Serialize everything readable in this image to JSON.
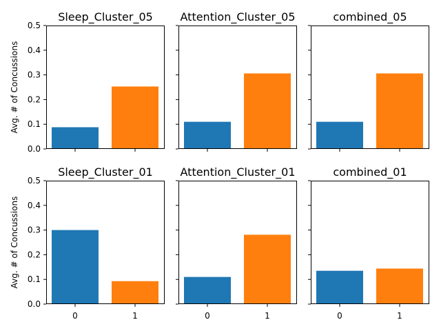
{
  "chart_data": [
    {
      "type": "bar",
      "title": "Sleep_Cluster_05",
      "categories": [
        "0",
        "1"
      ],
      "values": [
        0.088,
        0.253
      ],
      "ylabel": "Avg. # of Concussions",
      "xlabel": "",
      "ylim": [
        0,
        0.5
      ],
      "yticks": [
        "0.0",
        "0.1",
        "0.2",
        "0.3",
        "0.4",
        "0.5"
      ],
      "show_xticklabels": false,
      "show_yticklabels": true
    },
    {
      "type": "bar",
      "title": "Attention_Cluster_05",
      "categories": [
        "0",
        "1"
      ],
      "values": [
        0.11,
        0.306
      ],
      "ylabel": "",
      "xlabel": "",
      "ylim": [
        0,
        0.5
      ],
      "yticks": [
        "0.0",
        "0.1",
        "0.2",
        "0.3",
        "0.4",
        "0.5"
      ],
      "show_xticklabels": false,
      "show_yticklabels": false
    },
    {
      "type": "bar",
      "title": "combined_05",
      "categories": [
        "0",
        "1"
      ],
      "values": [
        0.11,
        0.306
      ],
      "ylabel": "",
      "xlabel": "",
      "ylim": [
        0,
        0.5
      ],
      "yticks": [
        "0.0",
        "0.1",
        "0.2",
        "0.3",
        "0.4",
        "0.5"
      ],
      "show_xticklabels": false,
      "show_yticklabels": false
    },
    {
      "type": "bar",
      "title": "Sleep_Cluster_01",
      "categories": [
        "0",
        "1"
      ],
      "values": [
        0.3,
        0.093
      ],
      "ylabel": "Avg. # of Concussions",
      "xlabel": "",
      "ylim": [
        0,
        0.5
      ],
      "yticks": [
        "0.0",
        "0.1",
        "0.2",
        "0.3",
        "0.4",
        "0.5"
      ],
      "show_xticklabels": true,
      "show_yticklabels": true
    },
    {
      "type": "bar",
      "title": "Attention_Cluster_01",
      "categories": [
        "0",
        "1"
      ],
      "values": [
        0.11,
        0.281
      ],
      "ylabel": "",
      "xlabel": "",
      "ylim": [
        0,
        0.5
      ],
      "yticks": [
        "0.0",
        "0.1",
        "0.2",
        "0.3",
        "0.4",
        "0.5"
      ],
      "show_xticklabels": true,
      "show_yticklabels": false
    },
    {
      "type": "bar",
      "title": "combined_01",
      "categories": [
        "0",
        "1"
      ],
      "values": [
        0.135,
        0.144
      ],
      "ylabel": "",
      "xlabel": "",
      "ylim": [
        0,
        0.5
      ],
      "yticks": [
        "0.0",
        "0.1",
        "0.2",
        "0.3",
        "0.4",
        "0.5"
      ],
      "show_xticklabels": true,
      "show_yticklabels": false
    }
  ],
  "colors": {
    "category_0": "#1f77b4",
    "category_1": "#ff7f0e"
  }
}
